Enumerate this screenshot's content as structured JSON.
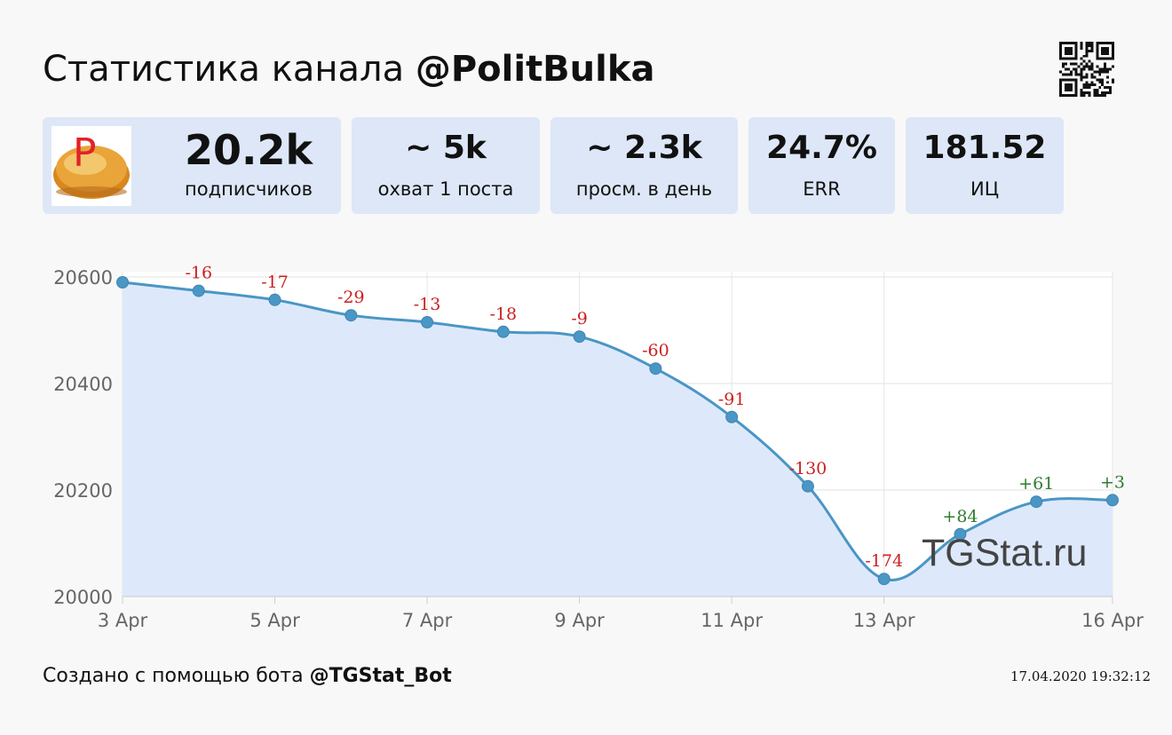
{
  "title": {
    "prefix": "Статистика канала ",
    "channel": "@PolitBulka"
  },
  "avatar": {
    "letter": "P",
    "icon": "bun-logo"
  },
  "stats": {
    "subscribers": {
      "value": "20.2k",
      "label": "подписчиков"
    },
    "reach": {
      "value": "~ 5k",
      "label": "охват 1 поста"
    },
    "daily_views": {
      "value": "~ 2.3k",
      "label": "просм. в день"
    },
    "err": {
      "value": "24.7%",
      "label": "ERR"
    },
    "index": {
      "value": "181.52",
      "label": "ИЦ"
    }
  },
  "chart_data": {
    "type": "line",
    "x": [
      "3 Apr",
      "4 Apr",
      "5 Apr",
      "6 Apr",
      "7 Apr",
      "8 Apr",
      "9 Apr",
      "10 Apr",
      "11 Apr",
      "12 Apr",
      "13 Apr",
      "14 Apr",
      "15 Apr",
      "16 Apr"
    ],
    "values": [
      20590,
      20574,
      20557,
      20528,
      20515,
      20497,
      20488,
      20428,
      20337,
      20207,
      20033,
      20117,
      20178,
      20181
    ],
    "point_labels": [
      "",
      "-16",
      "-17",
      "-29",
      "-13",
      "-18",
      "-9",
      "-60",
      "-91",
      "-130",
      "-174",
      "+84",
      "+61",
      "+3"
    ],
    "x_tick_labels": [
      "3 Apr",
      "5 Apr",
      "7 Apr",
      "9 Apr",
      "11 Apr",
      "13 Apr",
      "16 Apr"
    ],
    "y_ticks": [
      20000,
      20200,
      20400,
      20600
    ],
    "ylim": [
      20000,
      20600
    ],
    "grid": true,
    "colors": {
      "line": "#4a96c4",
      "fill": "#dde9fb",
      "negative": "#cc1f1f",
      "positive": "#2e7d2e"
    }
  },
  "watermark": "TGStat.ru",
  "footer": {
    "prefix": "Создано с помощью бота ",
    "bot": "@TGStat_Bot",
    "timestamp": "17.04.2020 19:32:12"
  }
}
